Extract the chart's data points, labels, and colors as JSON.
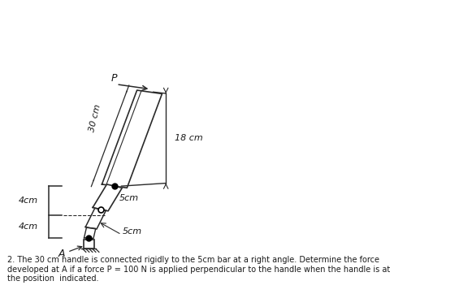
{
  "bg_color": "#ffffff",
  "text_color": "#1a1a1a",
  "line_color": "#2a2a2a",
  "title_text": "2. The 30 cm handle is connected rigidly to the 5cm bar at a right angle. Determine the force\ndeveloped at A if a force P = 100 N is applied perpendicular to the handle when the handle is at\nthe position  indicated.",
  "label_30cm": "30 cm",
  "label_18cm": "18 cm",
  "label_5cm_top": "5cm",
  "label_5cm_bot": "5cm",
  "label_4cm_top": "4cm",
  "label_4cm_bot": "4cm",
  "label_A": "A",
  "label_P": "P",
  "figsize": [
    5.81,
    3.62
  ],
  "dpi": 100,
  "xlim": [
    0,
    10
  ],
  "ylim": [
    0,
    10
  ]
}
